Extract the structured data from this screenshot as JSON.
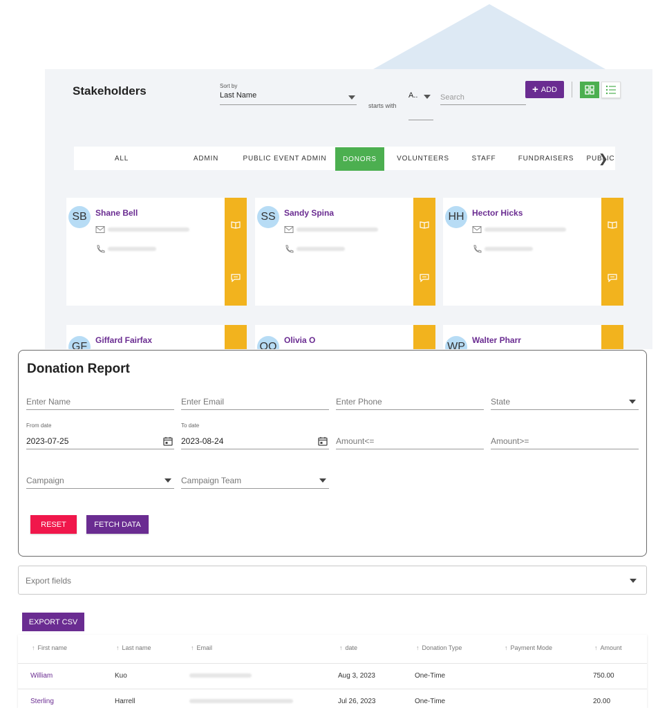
{
  "stakeholders": {
    "title": "Stakeholders",
    "sort_caption": "Sort by",
    "sort_value": "Last Name",
    "starts_with_label": "starts with",
    "letter_value": "A..",
    "search_placeholder": "Search",
    "add_label": "ADD",
    "tabs": [
      "ALL",
      "ADMIN",
      "PUBLIC EVENT ADMIN",
      "DONORS",
      "VOLUNTEERS",
      "STAFF",
      "FUNDRAISERS",
      "PUBLIC"
    ],
    "active_tab": "DONORS",
    "cards": [
      {
        "initials": "SB",
        "name": "Shane Bell"
      },
      {
        "initials": "SS",
        "name": "Sandy Spina"
      },
      {
        "initials": "HH",
        "name": "Hector Hicks"
      },
      {
        "initials": "GF",
        "name": "Giffard Fairfax"
      },
      {
        "initials": "OO",
        "name": "Olivia O"
      },
      {
        "initials": "WP",
        "name": "Walter Pharr"
      }
    ],
    "colors": {
      "accent_purple": "#6a2c91",
      "active_green": "#4caf50",
      "card_sidebar": "#f2b31e",
      "avatar": "#b7dcf5"
    }
  },
  "report": {
    "title": "Donation Report",
    "name_placeholder": "Enter Name",
    "email_placeholder": "Enter Email",
    "phone_placeholder": "Enter Phone",
    "state_label": "State",
    "from_caption": "From date",
    "from_value": "2023-07-25",
    "to_caption": "To date",
    "to_value": "2023-08-24",
    "amount_lte_placeholder": "Amount<=",
    "amount_gte_placeholder": "Amount>=",
    "campaign_label": "Campaign",
    "campaign_team_label": "Campaign Team",
    "reset_label": "RESET",
    "fetch_label": "FETCH DATA",
    "colors": {
      "reset": "#f0174b",
      "fetch": "#6a2c91"
    }
  },
  "export": {
    "fields_label": "Export fields",
    "csv_label": "EXPORT CSV"
  },
  "table": {
    "columns": [
      "First name",
      "Last name",
      "Email",
      "date",
      "Donation Type",
      "Payment Mode",
      "Amount"
    ],
    "rows": [
      {
        "first": "William",
        "last": "Kuo",
        "date": "Aug 3, 2023",
        "type": "One-Time",
        "mode": "",
        "amount": "750.00"
      },
      {
        "first": "Sterling",
        "last": "Harrell",
        "date": "Jul 26, 2023",
        "type": "One-Time",
        "mode": "",
        "amount": "20.00"
      }
    ]
  }
}
